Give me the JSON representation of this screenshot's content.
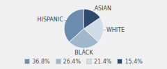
{
  "chart_data": {
    "type": "pie",
    "categories": [
      "HISPANIC",
      "BLACK",
      "WHITE",
      "ASIAN"
    ],
    "values": [
      36.8,
      26.4,
      21.4,
      15.4
    ],
    "value_labels": [
      "36.8%",
      "26.4%",
      "21.4%",
      "15.4%"
    ],
    "colors": [
      "#6b8cae",
      "#a0b8cc",
      "#d0dde8",
      "#2c4a6e"
    ],
    "legend": "bottom"
  }
}
